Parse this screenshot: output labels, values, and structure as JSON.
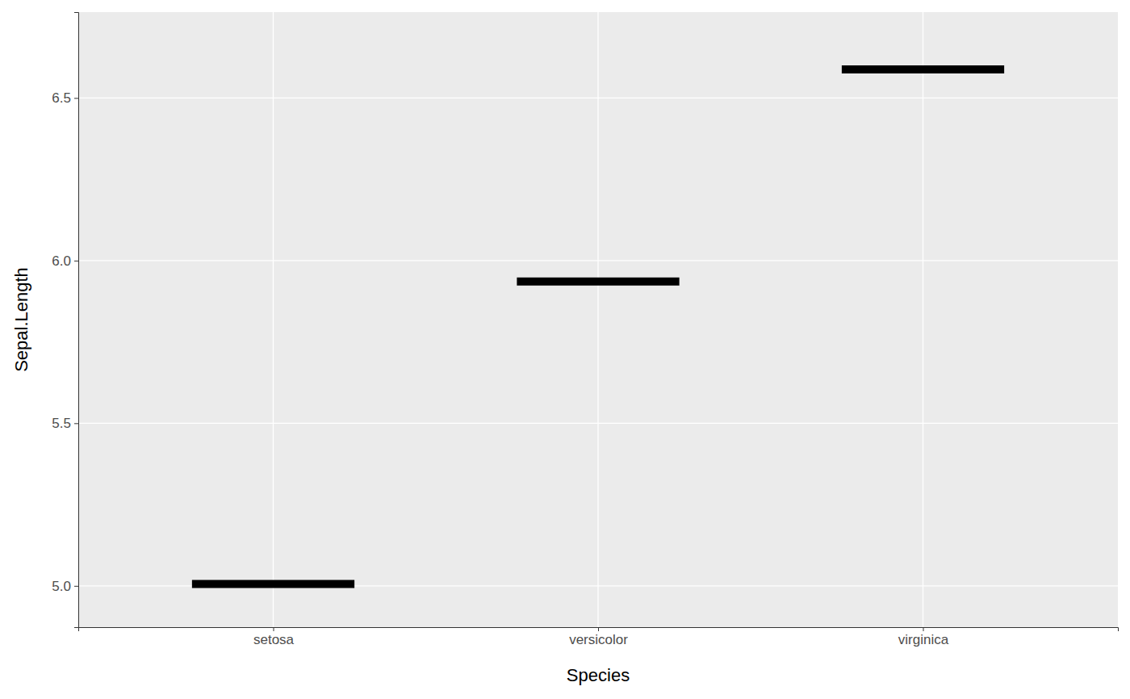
{
  "chart_data": {
    "type": "scatter",
    "marker": "line",
    "color": "#000000",
    "x_label": "Species",
    "y_label": "Sepal.Length",
    "categories": [
      "setosa",
      "versicolor",
      "virginica"
    ],
    "values": [
      5.006,
      5.936,
      6.588
    ],
    "ylim": [
      4.873,
      6.764
    ],
    "yticks": [
      {
        "value": 5,
        "label": "5.0"
      },
      {
        "value": 5.5,
        "label": "5.5"
      },
      {
        "value": 6,
        "label": "6.0"
      },
      {
        "value": 6.5,
        "label": "6.5"
      }
    ],
    "grid": true
  }
}
